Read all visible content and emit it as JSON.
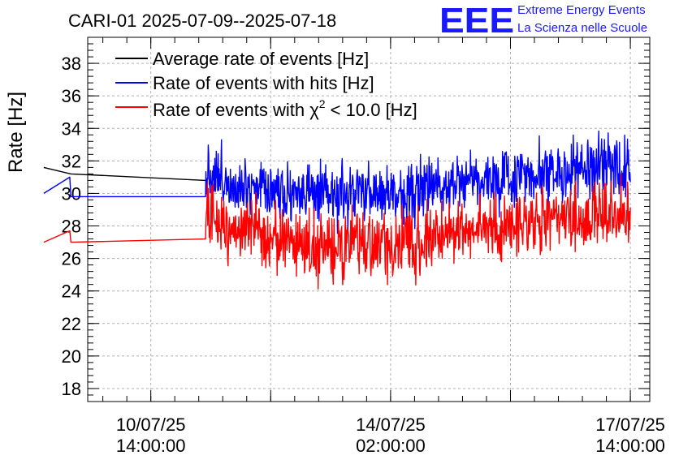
{
  "chart_data": {
    "type": "line",
    "title": "CARI-01 2025-07-09--2025-07-18",
    "ylabel": "Rate [Hz]",
    "xlabel": "",
    "ylim": [
      17.2,
      39.6
    ],
    "y_ticks": [
      18,
      20,
      22,
      24,
      26,
      28,
      30,
      32,
      34,
      36,
      38
    ],
    "x_range_hours": [
      -22.1,
      174.8
    ],
    "x_ticks": [
      {
        "hours": 0,
        "date": "10/07/25",
        "time": "14:00:00"
      },
      {
        "hours": 84,
        "date": "14/07/25",
        "time": "02:00:00"
      },
      {
        "hours": 168,
        "date": "17/07/25",
        "time": "14:00:00"
      }
    ],
    "grid": true,
    "legend_position": "top-left",
    "logo": {
      "mark": "EEE",
      "line1": "Extreme Energy Events",
      "line2": "La Scienza nelle Scuole"
    },
    "series": [
      {
        "name": "Average rate of events [Hz]",
        "label_prefix": "Average rate of events [Hz]",
        "color": "#000000",
        "points": [
          [
            -37.5,
            31.6
          ],
          [
            -28.0,
            31.2
          ],
          [
            19.2,
            30.8
          ]
        ]
      },
      {
        "name": "Rate of events with hits [Hz]",
        "label_prefix": "Rate of events with hits [Hz]",
        "color": "#0000ff",
        "noise": 0.9,
        "points": [
          [
            -37.5,
            30.0
          ],
          [
            -28.4,
            31.0
          ],
          [
            -28.0,
            29.8
          ],
          [
            19.2,
            29.8
          ],
          [
            19.3,
            31.4
          ],
          [
            28.0,
            30.7
          ],
          [
            48.0,
            30.2
          ],
          [
            62.0,
            29.7
          ],
          [
            74.0,
            30.0
          ],
          [
            86.0,
            29.9
          ],
          [
            98.0,
            30.4
          ],
          [
            110.0,
            31.0
          ],
          [
            122.0,
            30.7
          ],
          [
            134.0,
            31.4
          ],
          [
            146.0,
            31.2
          ],
          [
            158.0,
            31.6
          ],
          [
            168.0,
            31.6
          ]
        ]
      },
      {
        "name": "Rate of events with χ² < 10.0 [Hz]",
        "label_prefix": "Rate of events with χ",
        "label_sup": "2",
        "label_suffix": " < 10.0 [Hz]",
        "color": "#ff0000",
        "noise": 1.0,
        "points": [
          [
            -37.5,
            27.0
          ],
          [
            -28.4,
            27.7
          ],
          [
            -28.0,
            27.0
          ],
          [
            19.2,
            27.2
          ],
          [
            19.3,
            28.6
          ],
          [
            28.0,
            28.0
          ],
          [
            48.0,
            27.1
          ],
          [
            62.0,
            26.5
          ],
          [
            74.0,
            26.9
          ],
          [
            86.0,
            26.7
          ],
          [
            98.0,
            27.2
          ],
          [
            110.0,
            28.0
          ],
          [
            122.0,
            27.7
          ],
          [
            134.0,
            28.4
          ],
          [
            146.0,
            28.3
          ],
          [
            158.0,
            28.7
          ],
          [
            168.0,
            28.7
          ]
        ]
      }
    ]
  }
}
